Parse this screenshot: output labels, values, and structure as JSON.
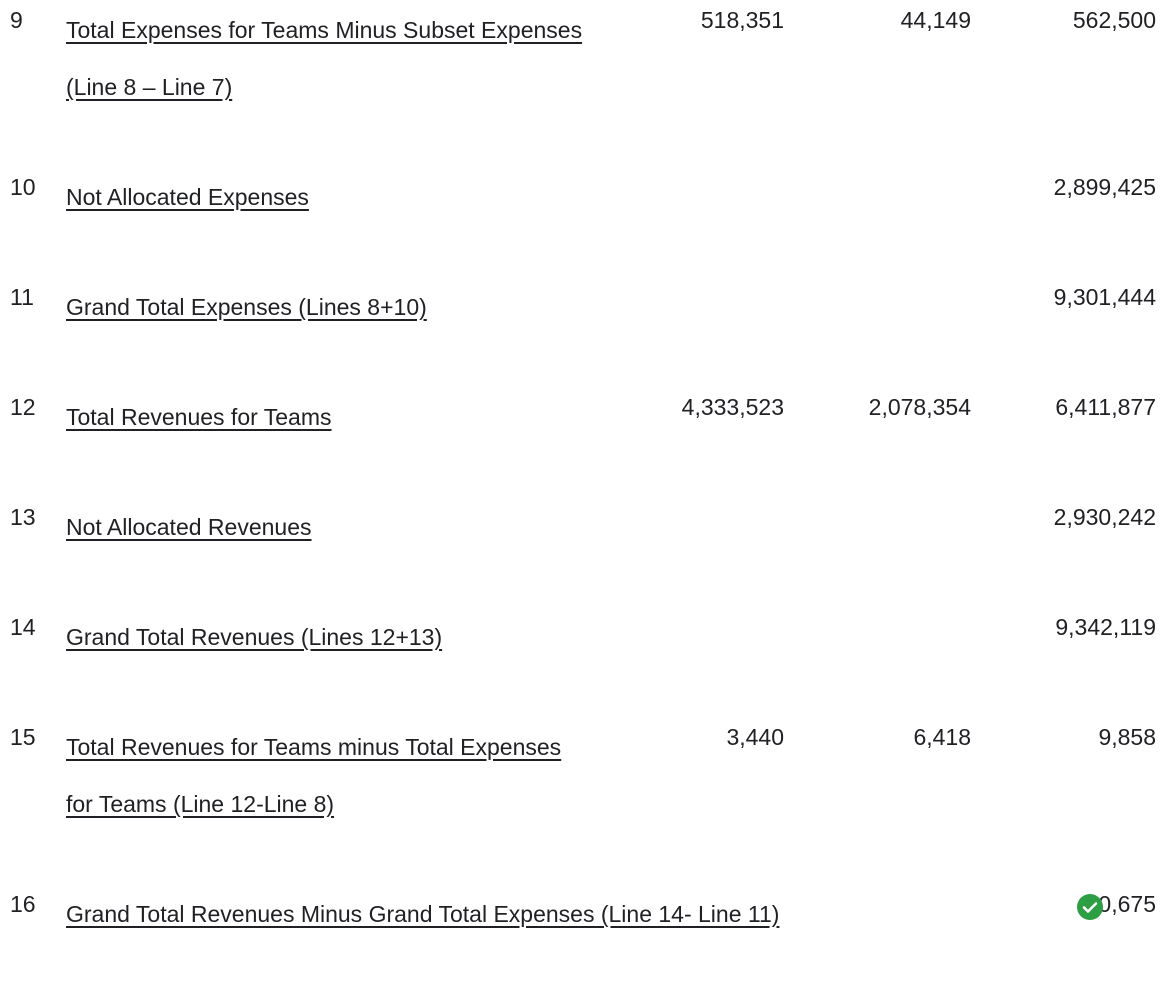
{
  "table": {
    "rows": [
      {
        "line": "9",
        "label": "Total Expenses for Teams Minus Subset Expenses (Line 8 – Line 7)",
        "values": [
          "518,351",
          "44,149",
          "562,500"
        ]
      },
      {
        "line": "10",
        "label": "Not Allocated Expenses",
        "values": [
          null,
          null,
          "2,899,425"
        ]
      },
      {
        "line": "11",
        "label": "Grand Total Expenses (Lines 8+10)",
        "values": [
          null,
          null,
          "9,301,444"
        ]
      },
      {
        "line": "12",
        "label": "Total Revenues for Teams",
        "values": [
          "4,333,523",
          "2,078,354",
          "6,411,877"
        ]
      },
      {
        "line": "13",
        "label": "Not Allocated Revenues",
        "values": [
          null,
          null,
          "2,930,242"
        ]
      },
      {
        "line": "14",
        "label": "Grand Total Revenues (Lines 12+13)",
        "values": [
          null,
          null,
          "9,342,119"
        ]
      },
      {
        "line": "15",
        "label": "Total Revenues for Teams minus Total Expenses for Teams (Line 12-Line 8)",
        "values": [
          "3,440",
          "6,418",
          "9,858"
        ]
      },
      {
        "line": "16",
        "label": "Grand Total Revenues Minus Grand Total Expenses (Line 14- Line 11)",
        "values": [
          null,
          null,
          "40,675"
        ]
      }
    ]
  }
}
